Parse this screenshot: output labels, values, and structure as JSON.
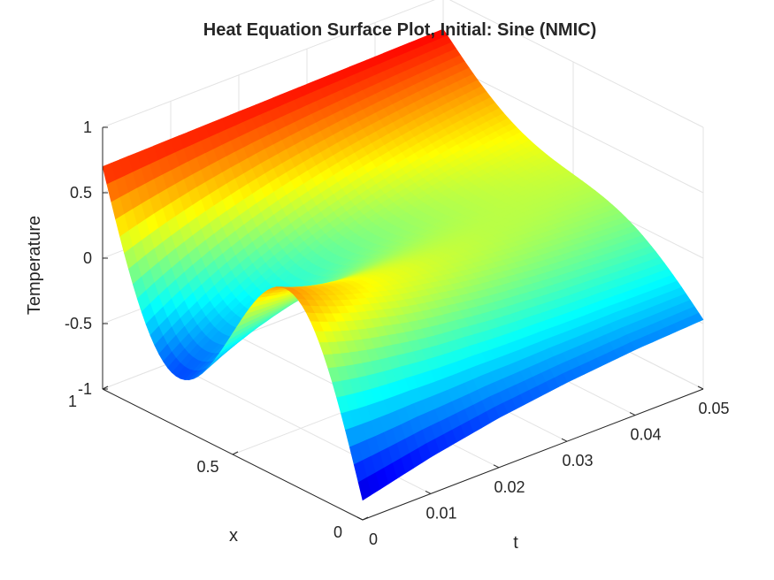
{
  "chart_data": {
    "type": "surface",
    "title": "Heat Equation Surface Plot, Initial: Sine (NMIC)",
    "xlabel": "x",
    "ylabel": "t",
    "zlabel": "Temperature",
    "x_range": [
      0,
      1
    ],
    "t_range": [
      0,
      0.05
    ],
    "z_range": [
      -1,
      1
    ],
    "x_ticks": [
      "0",
      "0.5",
      "1"
    ],
    "t_ticks": [
      "0",
      "0.01",
      "0.02",
      "0.03",
      "0.04",
      "0.05"
    ],
    "z_ticks": [
      "-1",
      "-0.5",
      "0",
      "0.5",
      "1"
    ],
    "x_tick_values": [
      0,
      0.5,
      1
    ],
    "t_tick_values": [
      0,
      0.01,
      0.02,
      0.03,
      0.04,
      0.05
    ],
    "z_tick_values": [
      -1,
      -0.5,
      0,
      0.5,
      1
    ],
    "colormap": "jet",
    "grid": true,
    "surface_samples": {
      "t": [
        0,
        0.01,
        0.02,
        0.03,
        0.04,
        0.05
      ],
      "T_at_x0": [
        -0.85,
        -0.72,
        -0.62,
        -0.55,
        -0.5,
        -0.47
      ],
      "T_at_x1": [
        0.7,
        0.71,
        0.72,
        0.73,
        0.74,
        0.75
      ]
    },
    "initial_condition": "sine",
    "initial_min": -1,
    "initial_max": 0.88
  }
}
